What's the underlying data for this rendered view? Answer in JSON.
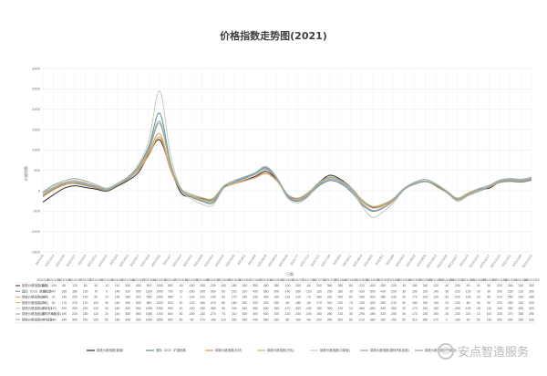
{
  "chart_data": {
    "type": "line",
    "title": "价格指数走势图(2021)",
    "ylabel": "价格指数",
    "xlabel": "日期",
    "ylim": [
      -1500,
      3000
    ],
    "yticks": [
      -1500,
      -1000,
      -500,
      0,
      500,
      1000,
      1500,
      2000,
      2500,
      3000
    ],
    "grid": true,
    "legend_position": "bottom",
    "x": [
      "2021/1/6",
      "2021/1/13",
      "2021/1/20",
      "2021/1/27",
      "2021/2/3",
      "2021/2/10",
      "2021/2/24",
      "2021/3/3",
      "2021/3/10",
      "2021/3/17",
      "2021/3/24",
      "2021/3/31",
      "2021/4/7",
      "2021/4/14",
      "2021/4/21",
      "2021/4/28",
      "2021/5/12",
      "2021/5/19",
      "2021/5/26",
      "2021/6/2",
      "2021/6/9",
      "2021/6/16",
      "2021/6/23",
      "2021/6/30",
      "2021/7/7",
      "2021/7/14",
      "2021/7/21",
      "2021/7/28",
      "2021/8/4",
      "2021/8/11",
      "2021/8/18",
      "2021/8/25",
      "2021/9/1",
      "2021/9/8",
      "2021/9/15",
      "2021/9/22",
      "2021/9/29",
      "2021/10/13",
      "2021/10/20",
      "2021/10/27",
      "2021/11/3",
      "2021/11/10",
      "2021/11/17",
      "2021/11/24",
      "2021/12/1",
      "2021/12/8",
      "2021/12/15"
    ],
    "series": [
      {
        "name": "钢铁价格指数(普钢)",
        "color": "#2b2b2b",
        "values": [
          -280,
          -100,
          60,
          120,
          80,
          40,
          -10,
          110,
          250,
          450,
          900,
          1250,
          550,
          -50,
          -150,
          -200,
          -230,
          100,
          180,
          260,
          350,
          480,
          280,
          -100,
          -200,
          -60,
          200,
          380,
          280,
          80,
          -220,
          -400,
          -350,
          -220,
          30,
          180,
          240,
          120,
          -40,
          -200,
          -90,
          40,
          60,
          220,
          260,
          240,
          300
        ]
      },
      {
        "name": "国际（DCI）矿钢指数",
        "color": "#5b8a98",
        "values": [
          -120,
          40,
          150,
          180,
          130,
          70,
          0,
          140,
          320,
          600,
          1100,
          1900,
          700,
          10,
          -160,
          -260,
          -300,
          60,
          220,
          320,
          430,
          560,
          300,
          -140,
          -260,
          -120,
          120,
          250,
          180,
          -20,
          -330,
          -500,
          -430,
          -250,
          30,
          160,
          220,
          140,
          -30,
          -220,
          -120,
          -20,
          90,
          200,
          230,
          210,
          260
        ]
      },
      {
        "name": "钢铁价格指数(长材)",
        "color": "#e0944a",
        "values": [
          -150,
          20,
          140,
          200,
          150,
          80,
          10,
          130,
          280,
          520,
          950,
          1400,
          560,
          0,
          -140,
          -210,
          -240,
          60,
          170,
          240,
          330,
          450,
          260,
          -110,
          -210,
          -70,
          180,
          330,
          250,
          60,
          -250,
          -420,
          -380,
          -230,
          40,
          170,
          230,
          130,
          -40,
          -220,
          -100,
          20,
          80,
          210,
          250,
          230,
          280
        ]
      },
      {
        "name": "钢铁价格指数(冷轧)",
        "color": "#d4a86a",
        "values": [
          -100,
          60,
          170,
          220,
          170,
          100,
          30,
          150,
          290,
          500,
          880,
          1320,
          520,
          20,
          -120,
          -180,
          -210,
          80,
          180,
          250,
          320,
          420,
          250,
          -90,
          -180,
          -50,
          170,
          310,
          240,
          70,
          -230,
          -390,
          -350,
          -210,
          50,
          180,
          240,
          140,
          -20,
          -200,
          -80,
          30,
          90,
          220,
          260,
          240,
          300
        ]
      },
      {
        "name": "钢铁价格指数(中厚板)",
        "color": "#c9c9b4",
        "values": [
          -50,
          120,
          200,
          260,
          200,
          120,
          40,
          160,
          320,
          650,
          1250,
          2450,
          900,
          40,
          -200,
          -330,
          -360,
          50,
          240,
          340,
          450,
          600,
          340,
          -170,
          -300,
          -140,
          150,
          300,
          220,
          10,
          -360,
          -650,
          -520,
          -300,
          20,
          170,
          240,
          160,
          -20,
          -260,
          -130,
          -10,
          110,
          240,
          280,
          260,
          320
        ]
      },
      {
        "name": "钢铁价格指数(镀锌热轧板卷)",
        "color": "#8aa4b4",
        "values": [
          -60,
          80,
          190,
          230,
          180,
          110,
          20,
          140,
          300,
          560,
          1050,
          1700,
          640,
          30,
          -150,
          -240,
          -270,
          70,
          210,
          300,
          400,
          530,
          300,
          -120,
          -240,
          -100,
          150,
          280,
          210,
          30,
          -290,
          -480,
          -420,
          -250,
          30,
          170,
          230,
          150,
          -30,
          -230,
          -110,
          10,
          100,
          230,
          270,
          250,
          290
        ]
      },
      {
        "name": "钢铁价格指数(PPI指数)",
        "color": "#9ab09a",
        "values": [
          -30,
          140,
          240,
          300,
          240,
          150,
          60,
          180,
          340,
          600,
          1000,
          1650,
          650,
          60,
          -90,
          -170,
          -190,
          110,
          250,
          340,
          440,
          580,
          330,
          -80,
          -190,
          -40,
          200,
          340,
          260,
          80,
          -210,
          -380,
          -330,
          -190,
          60,
          210,
          280,
          170,
          0,
          -180,
          -60,
          50,
          130,
          260,
          300,
          280,
          330
        ]
      }
    ]
  },
  "watermark": "安点智造服务"
}
